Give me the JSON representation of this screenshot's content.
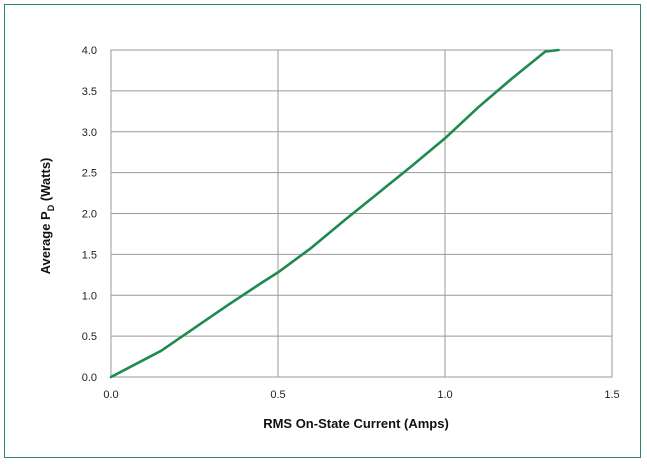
{
  "chart_data": {
    "type": "line",
    "xlabel": "RMS On-State Current (Amps)",
    "ylabel": {
      "prefix": "Average P",
      "subscript": "D",
      "suffix": " (Watts)"
    },
    "xlim": [
      0,
      1.5
    ],
    "ylim": [
      0,
      4.0
    ],
    "x_ticks": [
      "0.0",
      "0.5",
      "1.0",
      "1.5"
    ],
    "y_ticks": [
      "0.0",
      "0.5",
      "1.0",
      "1.5",
      "2.0",
      "2.5",
      "3.0",
      "3.5",
      "4.0"
    ],
    "grid": true,
    "series": [
      {
        "color": "#1e8a50",
        "x": [
          0.0,
          0.15,
          0.25,
          0.35,
          0.45,
          0.5,
          0.6,
          0.7,
          0.8,
          0.9,
          1.0,
          1.1,
          1.2,
          1.3,
          1.34
        ],
        "y": [
          0.0,
          0.32,
          0.6,
          0.88,
          1.15,
          1.28,
          1.58,
          1.92,
          2.25,
          2.58,
          2.92,
          3.3,
          3.65,
          3.98,
          4.0
        ]
      }
    ]
  }
}
